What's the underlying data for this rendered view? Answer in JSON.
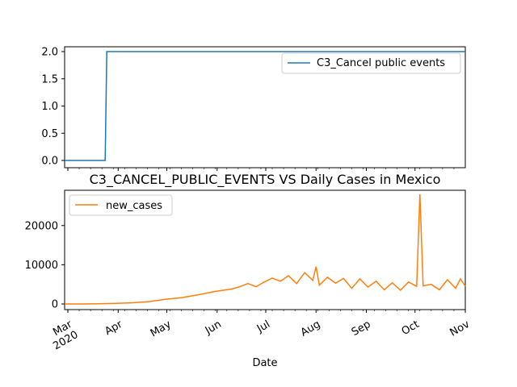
{
  "chart_data": [
    {
      "type": "line",
      "title": "",
      "xlabel": "",
      "ylabel": "",
      "ylim": [
        0,
        2.0
      ],
      "yticks": [
        "0.0",
        "0.5",
        "1.0",
        "1.5",
        "2.0"
      ],
      "legend": "top-right",
      "series": [
        {
          "name": "C3_Cancel public events",
          "color": "#1f77b4",
          "points": [
            [
              "2020-02-28",
              0
            ],
            [
              "2020-03-24",
              0
            ],
            [
              "2020-03-25",
              2
            ],
            [
              "2020-11-01",
              2
            ]
          ]
        }
      ]
    },
    {
      "type": "line",
      "title": "C3_CANCEL_PUBLIC_EVENTS VS Daily Cases in Mexico",
      "xlabel": "Date",
      "ylabel": "",
      "ylim": [
        0,
        29000
      ],
      "yticks": [
        "0",
        "10000",
        "20000"
      ],
      "xticks": [
        "Mar\n2020",
        "Apr",
        "May",
        "Jun",
        "Jul",
        "Aug",
        "Sep",
        "Oct",
        "Nov"
      ],
      "legend": "top-left",
      "series": [
        {
          "name": "new_cases",
          "color": "#ff7f0e",
          "points": [
            [
              "2020-02-28",
              0
            ],
            [
              "2020-03-10",
              5
            ],
            [
              "2020-03-20",
              60
            ],
            [
              "2020-03-31",
              150
            ],
            [
              "2020-04-10",
              300
            ],
            [
              "2020-04-20",
              600
            ],
            [
              "2020-04-30",
              1200
            ],
            [
              "2020-05-10",
              1600
            ],
            [
              "2020-05-20",
              2300
            ],
            [
              "2020-05-31",
              3200
            ],
            [
              "2020-06-10",
              3800
            ],
            [
              "2020-06-15",
              4400
            ],
            [
              "2020-06-20",
              5200
            ],
            [
              "2020-06-25",
              4400
            ],
            [
              "2020-06-30",
              5600
            ],
            [
              "2020-07-05",
              6600
            ],
            [
              "2020-07-10",
              5800
            ],
            [
              "2020-07-15",
              7200
            ],
            [
              "2020-07-20",
              5200
            ],
            [
              "2020-07-25",
              8000
            ],
            [
              "2020-07-30",
              6000
            ],
            [
              "2020-08-01",
              9500
            ],
            [
              "2020-08-03",
              4800
            ],
            [
              "2020-08-08",
              6800
            ],
            [
              "2020-08-13",
              5300
            ],
            [
              "2020-08-18",
              6500
            ],
            [
              "2020-08-23",
              4000
            ],
            [
              "2020-08-28",
              6400
            ],
            [
              "2020-09-02",
              4300
            ],
            [
              "2020-09-07",
              5800
            ],
            [
              "2020-09-12",
              3600
            ],
            [
              "2020-09-17",
              5400
            ],
            [
              "2020-09-22",
              3500
            ],
            [
              "2020-09-27",
              5600
            ],
            [
              "2020-10-02",
              4500
            ],
            [
              "2020-10-04",
              28000
            ],
            [
              "2020-10-06",
              4600
            ],
            [
              "2020-10-11",
              5000
            ],
            [
              "2020-10-16",
              3600
            ],
            [
              "2020-10-21",
              6200
            ],
            [
              "2020-10-26",
              4000
            ],
            [
              "2020-10-29",
              6400
            ],
            [
              "2020-11-01",
              4500
            ]
          ]
        }
      ]
    }
  ]
}
